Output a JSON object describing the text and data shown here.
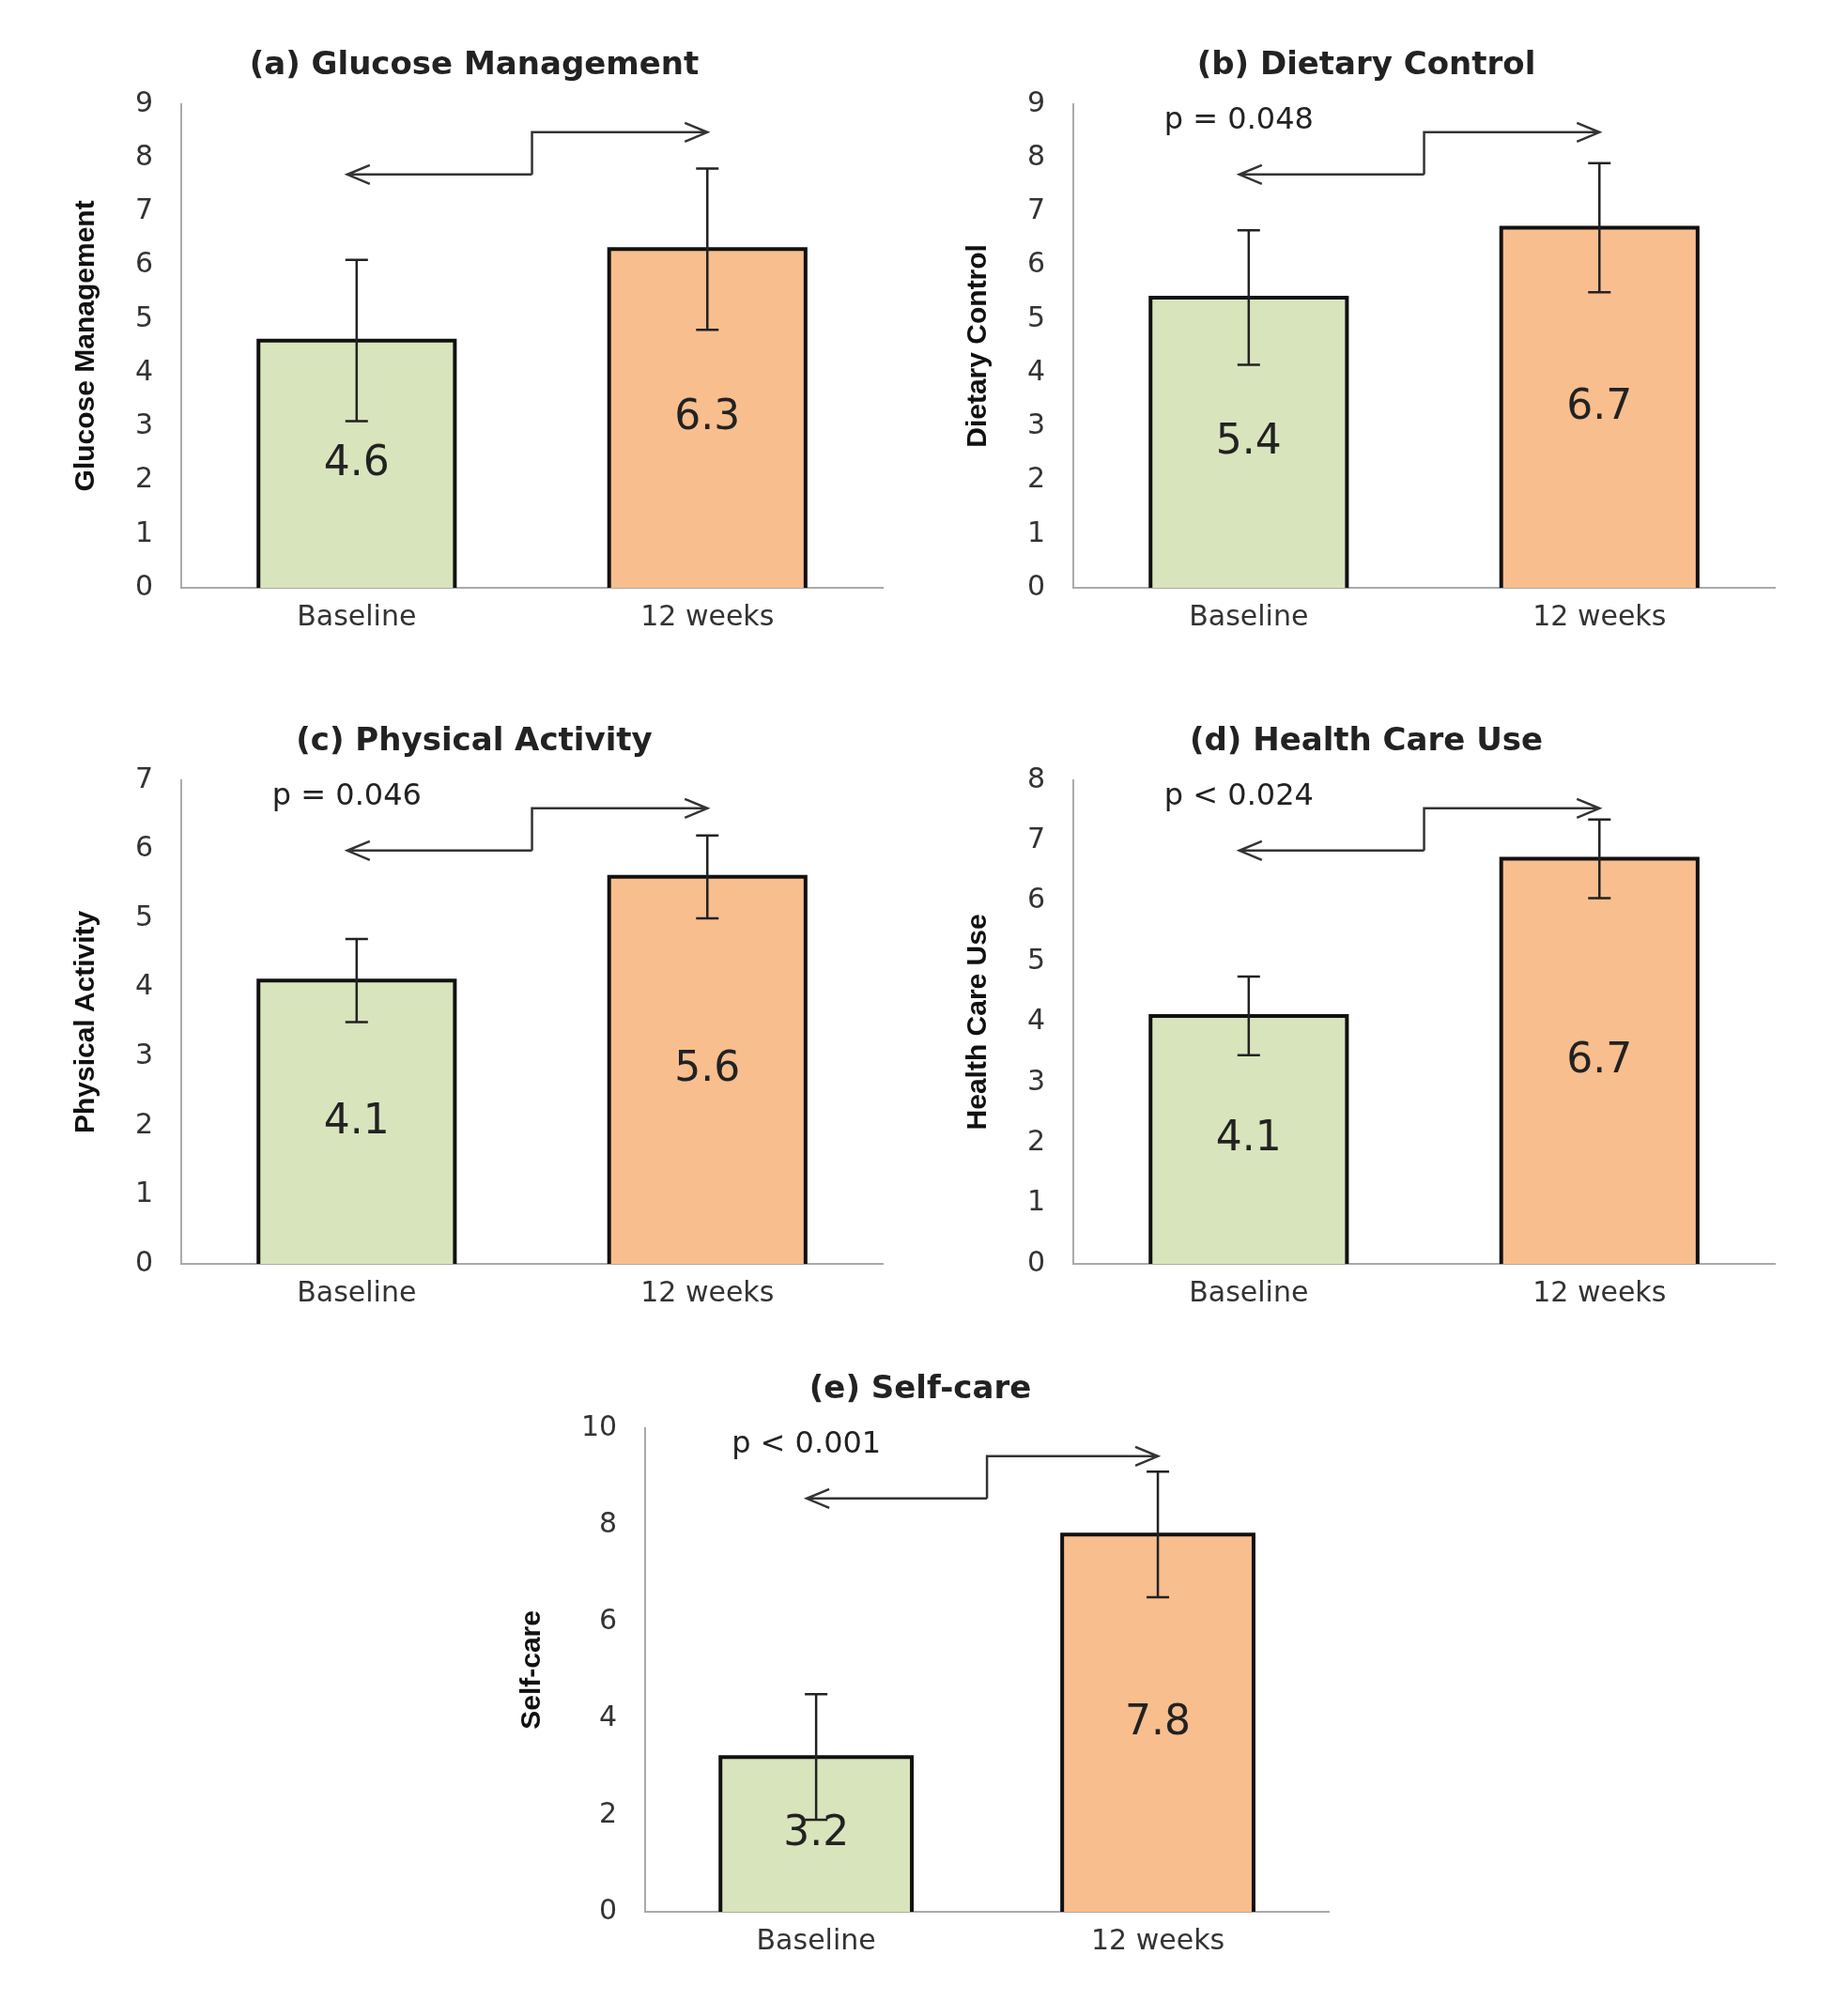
{
  "chart_data": [
    {
      "type": "bar",
      "title": "(a) Glucose Management",
      "ylabel": "Glucose Management",
      "categories": [
        "Baseline",
        "12 weeks"
      ],
      "values": [
        4.6,
        6.3
      ],
      "colors": [
        "#d8e4bc",
        "#f8be8e"
      ],
      "errors": [
        1.5,
        1.5
      ],
      "ylim": [
        0,
        9
      ],
      "yticks": [
        0,
        1,
        2,
        3,
        4,
        5,
        6,
        7,
        8,
        9
      ],
      "data_labels": true
    },
    {
      "type": "bar",
      "title": "(b) Dietary Control",
      "ylabel": "Dietary Control",
      "categories": [
        "Baseline",
        "12 weeks"
      ],
      "values": [
        5.4,
        6.7
      ],
      "colors": [
        "#d8e4bc",
        "#f8be8e"
      ],
      "errors": [
        1.25,
        1.2
      ],
      "ylim": [
        0,
        9
      ],
      "yticks": [
        0,
        1,
        2,
        3,
        4,
        5,
        6,
        7,
        8,
        9
      ],
      "data_labels": true,
      "annotations": [
        "p = 0.048"
      ]
    },
    {
      "type": "bar",
      "title": "(c) Physical Activity",
      "ylabel": "Physical Activity",
      "categories": [
        "Baseline",
        "12 weeks"
      ],
      "values": [
        4.1,
        5.6
      ],
      "colors": [
        "#d8e4bc",
        "#f8be8e"
      ],
      "errors": [
        0.6,
        0.6
      ],
      "ylim": [
        0,
        7
      ],
      "yticks": [
        0,
        1,
        2,
        3,
        4,
        5,
        6,
        7
      ],
      "data_labels": true,
      "annotations": [
        "p = 0.046"
      ]
    },
    {
      "type": "bar",
      "title": "(d) Health Care Use",
      "ylabel": "Health Care Use",
      "categories": [
        "Baseline",
        "12 weeks"
      ],
      "values": [
        4.1,
        6.7
      ],
      "colors": [
        "#d8e4bc",
        "#f8be8e"
      ],
      "errors": [
        0.65,
        0.65
      ],
      "ylim": [
        0,
        8
      ],
      "yticks": [
        0,
        1,
        2,
        3,
        4,
        5,
        6,
        7,
        8
      ],
      "data_labels": true,
      "annotations": [
        "p < 0.024"
      ]
    },
    {
      "type": "bar",
      "title": "(e) Self-care",
      "ylabel": "Self-care",
      "categories": [
        "Baseline",
        "12 weeks"
      ],
      "values": [
        3.2,
        7.8
      ],
      "colors": [
        "#d8e4bc",
        "#f8be8e"
      ],
      "errors": [
        1.3,
        1.3
      ],
      "ylim": [
        0,
        10
      ],
      "yticks": [
        0,
        2,
        4,
        6,
        8,
        10
      ],
      "data_labels": true,
      "annotations": [
        "p < 0.001"
      ]
    }
  ]
}
